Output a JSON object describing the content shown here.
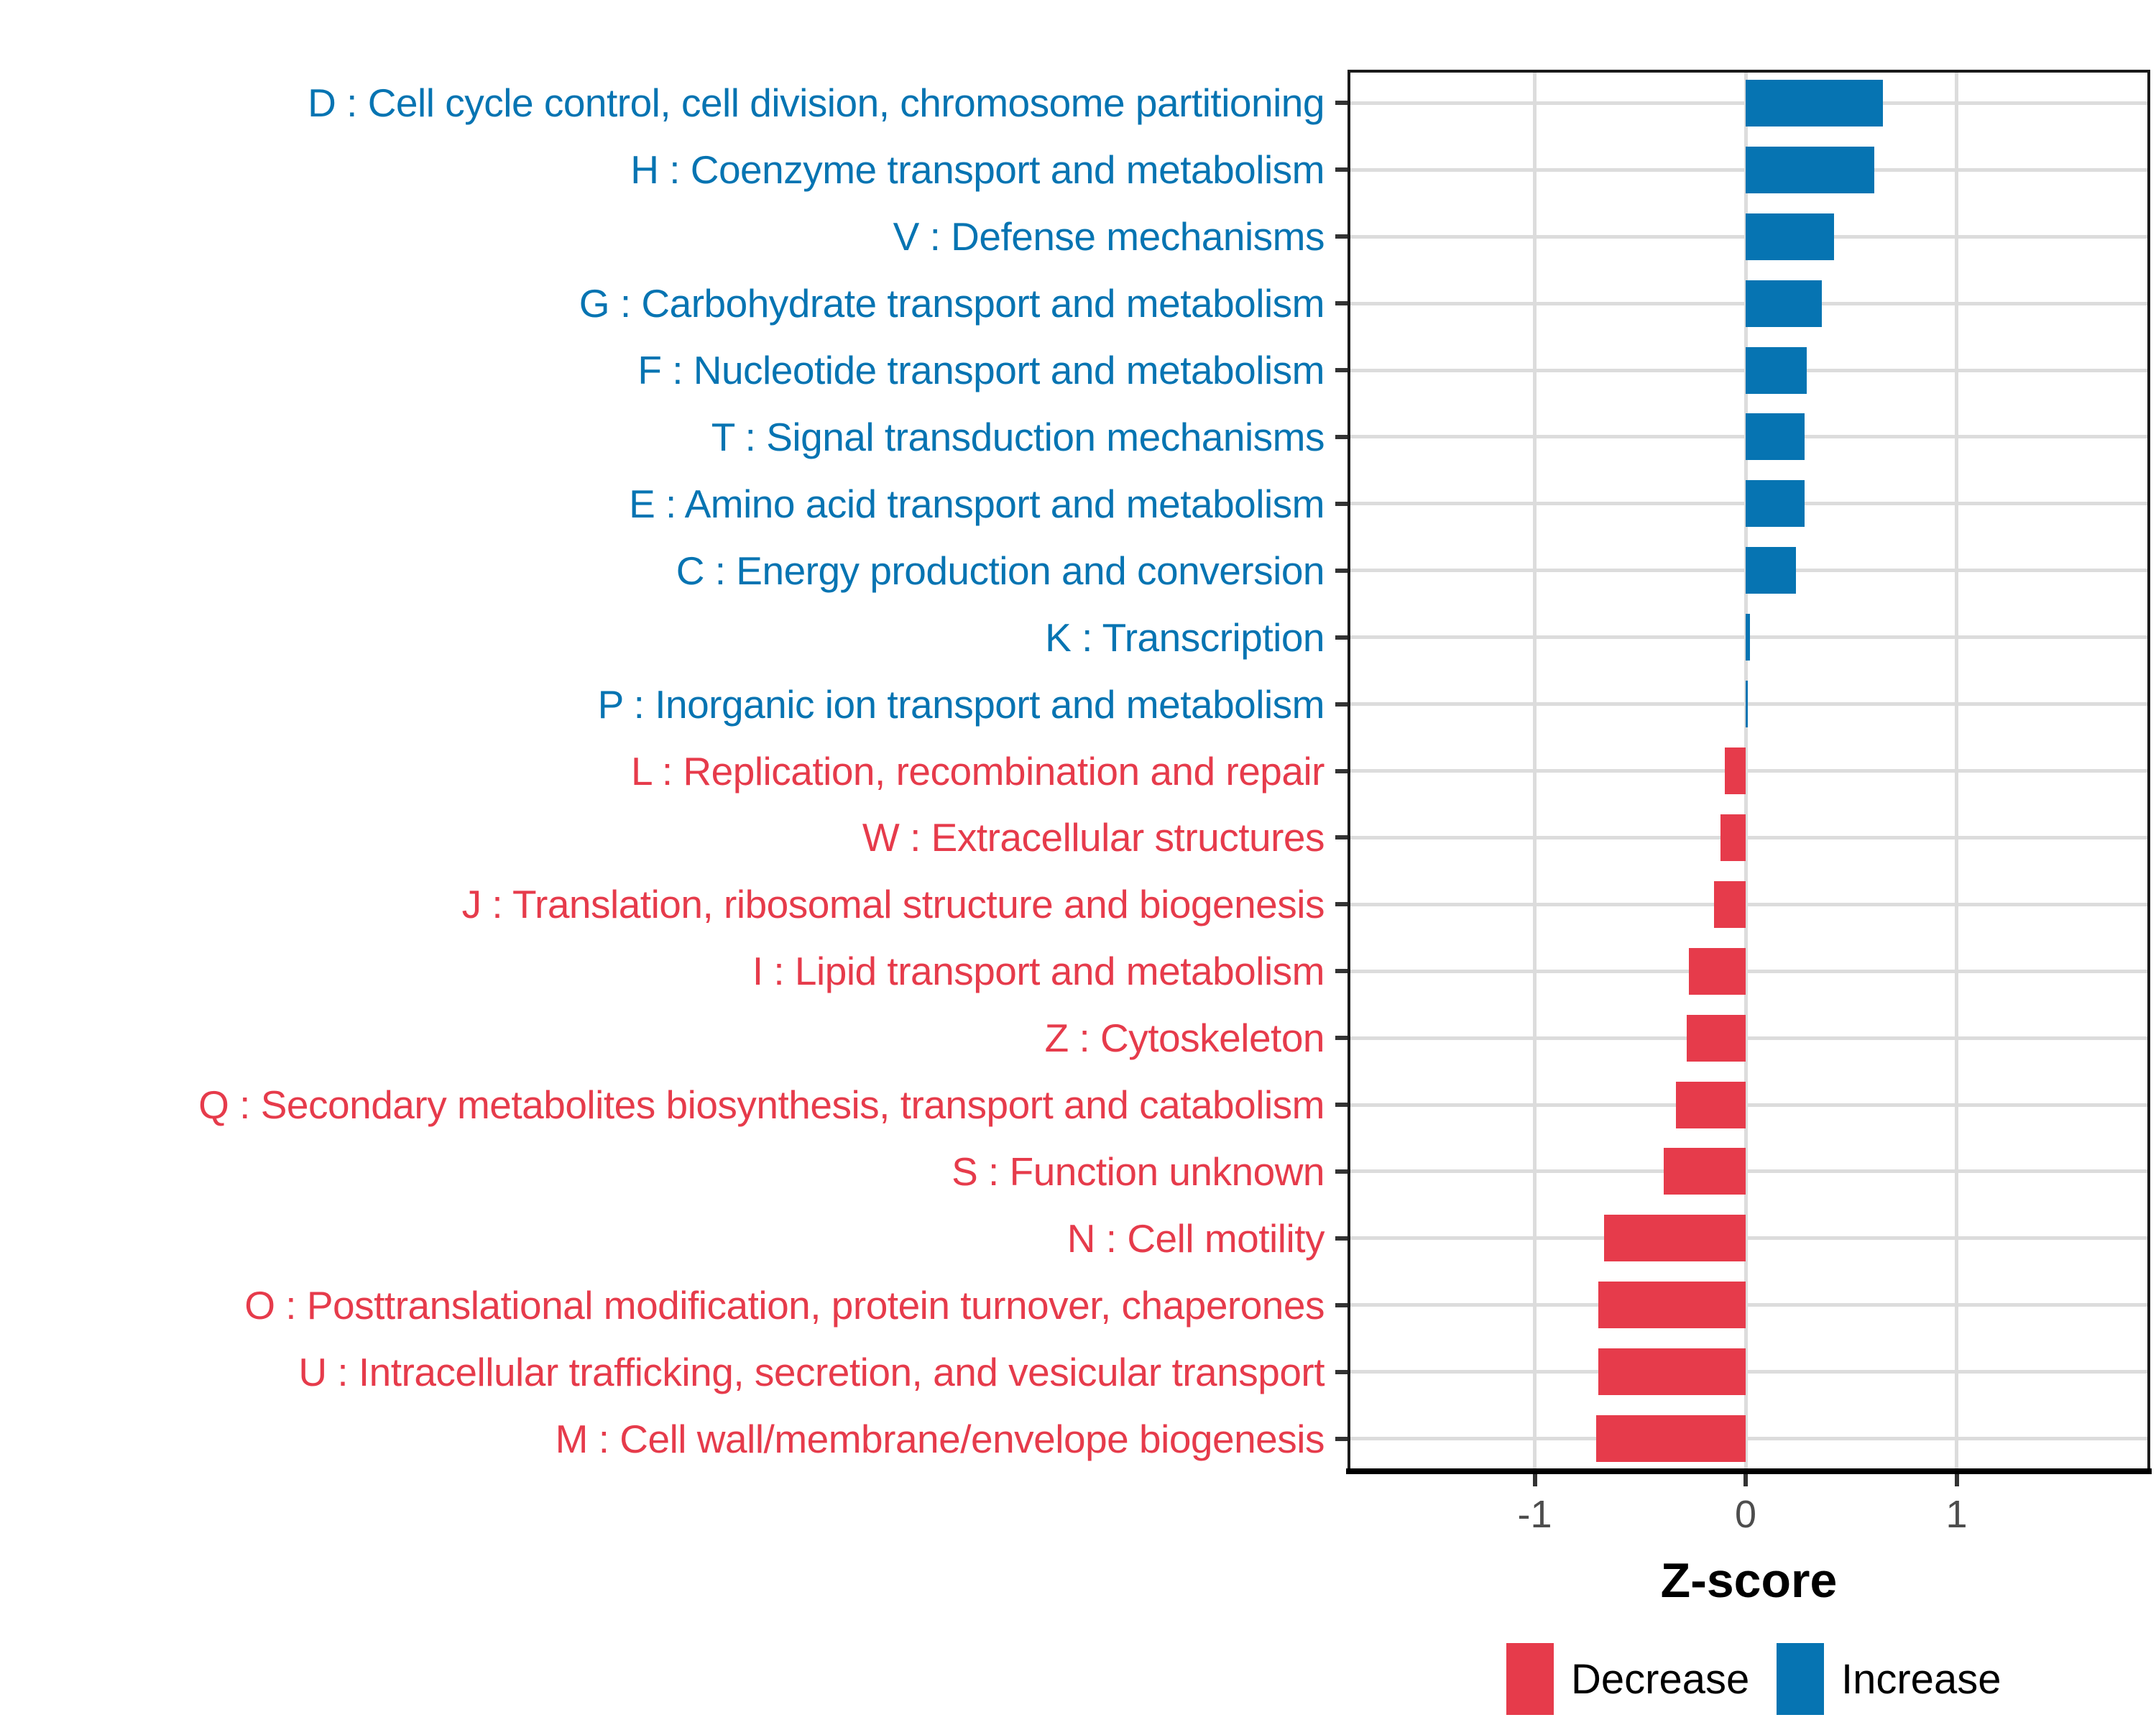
{
  "chart_data": {
    "type": "bar",
    "orientation": "horizontal",
    "title": "",
    "xlabel": "Z-score",
    "ylabel": "",
    "x_tick_labels": [
      "-1",
      "0",
      "1"
    ],
    "x_tick_values": [
      -1,
      0,
      1
    ],
    "xlim": [
      -1.89,
      1.92
    ],
    "grid": true,
    "legend_position": "bottom",
    "legend": [
      {
        "key": "decrease",
        "label": "Decrease",
        "color": "#E63B4B"
      },
      {
        "key": "increase",
        "label": "Increase",
        "color": "#0674B2"
      }
    ],
    "bars": [
      {
        "code": "D",
        "label": "D : Cell cycle control, cell division, chromosome partitioning",
        "value": 0.65,
        "direction": "increase"
      },
      {
        "code": "H",
        "label": "H : Coenzyme transport and metabolism",
        "value": 0.61,
        "direction": "increase"
      },
      {
        "code": "V",
        "label": "V : Defense mechanisms",
        "value": 0.42,
        "direction": "increase"
      },
      {
        "code": "G",
        "label": "G : Carbohydrate transport and metabolism",
        "value": 0.36,
        "direction": "increase"
      },
      {
        "code": "F",
        "label": "F : Nucleotide transport and metabolism",
        "value": 0.29,
        "direction": "increase"
      },
      {
        "code": "T",
        "label": "T : Signal transduction mechanisms",
        "value": 0.28,
        "direction": "increase"
      },
      {
        "code": "E",
        "label": "E : Amino acid transport and metabolism",
        "value": 0.28,
        "direction": "increase"
      },
      {
        "code": "C",
        "label": "C : Energy production and conversion",
        "value": 0.24,
        "direction": "increase"
      },
      {
        "code": "K",
        "label": "K : Transcription",
        "value": 0.02,
        "direction": "increase"
      },
      {
        "code": "P",
        "label": "P : Inorganic ion transport and metabolism",
        "value": 0.01,
        "direction": "increase"
      },
      {
        "code": "L",
        "label": "L : Replication, recombination and repair",
        "value": -0.1,
        "direction": "decrease"
      },
      {
        "code": "W",
        "label": "W : Extracellular structures",
        "value": -0.12,
        "direction": "decrease"
      },
      {
        "code": "J",
        "label": "J : Translation, ribosomal structure and biogenesis",
        "value": -0.15,
        "direction": "decrease"
      },
      {
        "code": "I",
        "label": "I : Lipid transport and metabolism",
        "value": -0.27,
        "direction": "decrease"
      },
      {
        "code": "Z",
        "label": "Z : Cytoskeleton",
        "value": -0.28,
        "direction": "decrease"
      },
      {
        "code": "Q",
        "label": "Q : Secondary metabolites biosynthesis, transport and catabolism",
        "value": -0.33,
        "direction": "decrease"
      },
      {
        "code": "S",
        "label": "S : Function unknown",
        "value": -0.39,
        "direction": "decrease"
      },
      {
        "code": "N",
        "label": "N : Cell motility",
        "value": -0.67,
        "direction": "decrease"
      },
      {
        "code": "O",
        "label": "O : Posttranslational modification, protein turnover, chaperones",
        "value": -0.7,
        "direction": "decrease"
      },
      {
        "code": "U",
        "label": "U : Intracellular trafficking, secretion, and vesicular transport",
        "value": -0.7,
        "direction": "decrease"
      },
      {
        "code": "M",
        "label": "M : Cell wall/membrane/envelope biogenesis",
        "value": -0.71,
        "direction": "decrease"
      }
    ]
  },
  "colors": {
    "increase": "#0674B2",
    "decrease": "#E63B4B",
    "grid": "#DCDCDC",
    "tick": "#333333",
    "axis_text": "#4D4D4D",
    "border": "#1A1A1A",
    "background": "#FFFFFF"
  }
}
